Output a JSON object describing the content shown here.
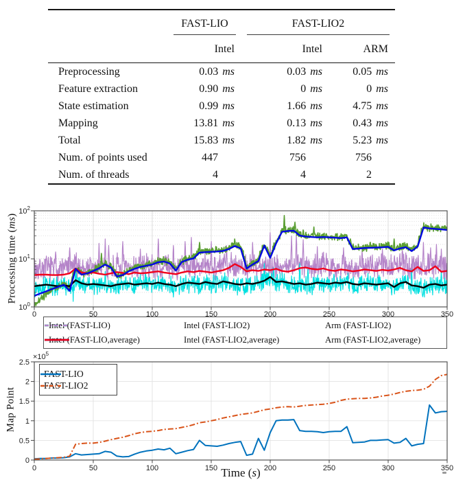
{
  "table": {
    "col_groups": [
      {
        "label": "FAST-LIO",
        "span": 1
      },
      {
        "label": "FAST-LIO2",
        "span": 2
      }
    ],
    "col_headers": [
      "Intel",
      "Intel",
      "ARM"
    ],
    "rows": [
      {
        "label": "Preprocessing",
        "cells": [
          {
            "v": "0.03",
            "u": "ms"
          },
          {
            "v": "0.03",
            "u": "ms"
          },
          {
            "v": "0.05",
            "u": "ms"
          }
        ]
      },
      {
        "label": "Feature extraction",
        "cells": [
          {
            "v": "0.90",
            "u": "ms"
          },
          {
            "v": "0",
            "u": "ms"
          },
          {
            "v": "0",
            "u": "ms"
          }
        ]
      },
      {
        "label": "State estimation",
        "cells": [
          {
            "v": "0.99",
            "u": "ms"
          },
          {
            "v": "1.66",
            "u": "ms"
          },
          {
            "v": "4.75",
            "u": "ms"
          }
        ]
      },
      {
        "label": "Mapping",
        "cells": [
          {
            "v": "13.81",
            "u": "ms"
          },
          {
            "v": "0.13",
            "u": "ms"
          },
          {
            "v": "0.43",
            "u": "ms"
          }
        ]
      },
      {
        "label": "Total",
        "cells": [
          {
            "v": "15.83",
            "u": "ms"
          },
          {
            "v": "1.82",
            "u": "ms"
          },
          {
            "v": "5.23",
            "u": "ms"
          }
        ]
      },
      {
        "label": "Num. of points used",
        "cells": [
          {
            "v": "447",
            "u": ""
          },
          {
            "v": "756",
            "u": ""
          },
          {
            "v": "756",
            "u": ""
          }
        ]
      },
      {
        "label": "Num. of threads",
        "cells": [
          {
            "v": "4",
            "u": ""
          },
          {
            "v": "4",
            "u": ""
          },
          {
            "v": "2",
            "u": ""
          }
        ]
      }
    ]
  },
  "chart_data": [
    {
      "type": "line",
      "title": "",
      "xlabel": "",
      "ylabel": "Processing time (ms)",
      "yscale": "log",
      "xlim": [
        0,
        350
      ],
      "ylim": [
        1,
        100
      ],
      "x_ticks": [
        0,
        50,
        100,
        150,
        200,
        250,
        300,
        350
      ],
      "y_ticks": [
        "10^0",
        "10^1",
        "10^2"
      ],
      "grid": true,
      "legend_position": "below",
      "x_step": 5,
      "series": [
        {
          "name": "Intel (FAST-LIO)",
          "kind": "raw",
          "color": "#5a9e32",
          "style": "dashdot",
          "noise_sigma": 0.13,
          "base": [
            1.1,
            1.4,
            1.9,
            2.3,
            2.6,
            3.0,
            2.3,
            6.5,
            4.9,
            5.3,
            5.9,
            6.7,
            8.0,
            6.9,
            4.5,
            4.8,
            5.8,
            6.5,
            7.1,
            7.6,
            8.0,
            8.9,
            9.2,
            8.4,
            6.0,
            9.0,
            10.1,
            10.7,
            14.2,
            14.5,
            14.7,
            14.9,
            15.3,
            16.8,
            19.4,
            17.3,
            6.6,
            8.0,
            9.5,
            20.0,
            11.0,
            22.0,
            38.3,
            39.9,
            40.4,
            32.0,
            30.5,
            29.9,
            29.4,
            29.9,
            29.4,
            28.9,
            28.4,
            29.4,
            16.8,
            17.1,
            17.6,
            17.9,
            18.1,
            18.3,
            18.7,
            15.8,
            17.3,
            18.4,
            15.2,
            18.9,
            47.3,
            45.2,
            44.1,
            43.1,
            42.0
          ],
          "spikes": [
            [
              212,
              80
            ],
            [
              221,
              58
            ],
            [
              228,
              40
            ],
            [
              237,
              46
            ],
            [
              247,
              30
            ],
            [
              305,
              26
            ],
            [
              332,
              52
            ],
            [
              140,
              22
            ],
            [
              170,
              26
            ],
            [
              57,
              13
            ]
          ]
        },
        {
          "name": "Intel (FAST-LIO2)",
          "kind": "raw",
          "color": "#00e0e0",
          "style": "dashdot",
          "noise_sigma": 0.3,
          "base": [
            2.6,
            2.7,
            2.8,
            2.7,
            2.6,
            2.7,
            2.6,
            3.4,
            3.0,
            2.8,
            2.9,
            2.8,
            2.7,
            2.6,
            2.8,
            2.9,
            3.0,
            2.8,
            2.9,
            3.0,
            2.9,
            3.1,
            2.9,
            2.8,
            2.6,
            2.9,
            3.1,
            3.0,
            2.9,
            3.2,
            3.0,
            2.9,
            3.3,
            3.1,
            2.9,
            2.8,
            3.0,
            2.9,
            3.1,
            3.4,
            4.0,
            3.2,
            3.3,
            3.1,
            2.9,
            3.0,
            2.8,
            2.9,
            3.1,
            3.0,
            2.9,
            3.1,
            3.0,
            3.2,
            2.9,
            2.8,
            3.0,
            2.9,
            2.8,
            2.9,
            3.0,
            2.5,
            3.0,
            3.2,
            2.7,
            2.6,
            2.4,
            2.8,
            2.9,
            2.7,
            2.8
          ],
          "spikes": [
            [
              33,
              1.3
            ],
            [
              60,
              5.5
            ],
            [
              90,
              5.0
            ],
            [
              118,
              1.6
            ],
            [
              178,
              1.8
            ],
            [
              195,
              8.0
            ],
            [
              203,
              6.5
            ],
            [
              225,
              8.0
            ],
            [
              232,
              6.0
            ],
            [
              283,
              5.0
            ],
            [
              320,
              6.0
            ],
            [
              345,
              5.5
            ]
          ]
        },
        {
          "name": "Arm (FAST-LIO2)",
          "kind": "raw",
          "color": "#b584c9",
          "style": "dashdot",
          "noise_sigma": 0.42,
          "base": [
            6.0,
            6.2,
            6.5,
            6.3,
            6.1,
            6.4,
            6.6,
            7.2,
            6.8,
            6.5,
            6.7,
            6.4,
            6.2,
            6.5,
            6.8,
            6.6,
            6.3,
            6.7,
            6.5,
            6.6,
            6.8,
            7.0,
            6.7,
            6.5,
            6.3,
            6.7,
            7.0,
            6.8,
            7.1,
            6.9,
            6.7,
            7.0,
            7.3,
            7.8,
            7.5,
            7.0,
            6.7,
            7.0,
            6.8,
            7.2,
            7.0,
            7.4,
            6.8,
            6.6,
            7.0,
            7.6,
            7.8,
            7.4,
            7.2,
            7.5,
            7.0,
            6.8,
            7.2,
            7.0,
            6.7,
            6.9,
            7.2,
            7.0,
            6.8,
            7.1,
            6.9,
            7.2,
            7.7,
            7.0,
            6.7,
            8.0,
            6.8,
            7.0,
            8.2,
            6.6,
            6.8
          ],
          "spikes": [
            [
              18,
              14
            ],
            [
              30,
              17
            ],
            [
              55,
              21
            ],
            [
              60,
              26
            ],
            [
              63,
              19
            ],
            [
              75,
              23
            ],
            [
              90,
              16
            ],
            [
              105,
              26
            ],
            [
              118,
              19
            ],
            [
              128,
              23
            ],
            [
              133,
              28
            ],
            [
              150,
              23
            ],
            [
              163,
              19
            ],
            [
              185,
              22
            ],
            [
              200,
              35
            ],
            [
              218,
              30
            ],
            [
              222,
              32
            ],
            [
              228,
              25
            ],
            [
              240,
              18
            ],
            [
              262,
              17
            ],
            [
              278,
              15
            ],
            [
              295,
              16
            ],
            [
              312,
              15
            ],
            [
              330,
              22
            ],
            [
              336,
              17
            ],
            [
              341,
              20
            ],
            [
              345,
              16
            ]
          ]
        },
        {
          "name": "Intel (FAST-LIO,average)",
          "kind": "average",
          "color": "#0008e0",
          "style": "solid",
          "values": [
            1.7,
            1.9,
            2.1,
            2.35,
            2.6,
            2.9,
            2.15,
            6.2,
            4.7,
            5.0,
            5.6,
            6.4,
            7.6,
            6.6,
            4.3,
            4.6,
            5.5,
            6.2,
            6.8,
            7.2,
            7.6,
            8.5,
            8.8,
            8.0,
            5.7,
            8.6,
            9.6,
            10.2,
            13.5,
            13.8,
            14.0,
            14.2,
            14.6,
            16.0,
            18.5,
            16.5,
            6.3,
            7.6,
            9.0,
            19.0,
            10.5,
            21.0,
            36.5,
            38.0,
            38.5,
            30.5,
            29.0,
            28.5,
            28.0,
            28.5,
            28.0,
            27.5,
            27.0,
            28.0,
            16.0,
            16.3,
            16.8,
            17.0,
            17.2,
            17.4,
            17.8,
            15.0,
            16.5,
            17.5,
            14.5,
            18.0,
            45.0,
            43.0,
            42.0,
            41.0,
            40.0
          ]
        },
        {
          "name": "Intel (FAST-LIO2,average)",
          "kind": "average",
          "color": "#000000",
          "style": "solid",
          "values": [
            2.7,
            2.8,
            2.9,
            2.8,
            2.7,
            2.8,
            2.7,
            3.6,
            3.1,
            2.9,
            3.0,
            2.9,
            2.8,
            2.7,
            2.9,
            3.0,
            3.1,
            2.9,
            3.0,
            3.1,
            3.0,
            3.2,
            3.0,
            2.9,
            2.7,
            3.0,
            3.2,
            3.1,
            3.0,
            3.3,
            3.1,
            3.0,
            3.4,
            3.2,
            3.0,
            2.9,
            3.1,
            3.0,
            3.2,
            3.5,
            4.2,
            3.3,
            3.4,
            3.2,
            3.0,
            3.1,
            2.9,
            3.0,
            3.2,
            3.1,
            3.0,
            3.2,
            3.1,
            3.3,
            3.0,
            2.9,
            3.1,
            3.0,
            2.9,
            3.0,
            3.1,
            2.6,
            3.1,
            3.3,
            2.8,
            2.7,
            2.5,
            2.9,
            3.0,
            2.8,
            2.9
          ]
        },
        {
          "name": "Arm (FAST-LIO2,average)",
          "kind": "average",
          "color": "#f0001c",
          "style": "solid",
          "values": [
            4.6,
            4.7,
            4.7,
            4.6,
            4.6,
            4.7,
            5.0,
            6.3,
            5.2,
            5.0,
            5.2,
            4.9,
            4.7,
            5.0,
            5.3,
            5.1,
            4.8,
            5.2,
            5.0,
            5.1,
            5.3,
            5.5,
            5.2,
            5.0,
            4.8,
            5.2,
            5.5,
            5.3,
            5.6,
            5.4,
            5.2,
            5.5,
            5.8,
            6.5,
            7.8,
            6.8,
            5.5,
            5.8,
            5.6,
            6.0,
            5.8,
            6.2,
            5.6,
            5.4,
            5.8,
            6.4,
            6.6,
            6.2,
            6.0,
            6.3,
            5.8,
            5.6,
            6.0,
            5.8,
            5.5,
            5.7,
            6.0,
            5.8,
            5.6,
            5.9,
            5.7,
            6.0,
            6.5,
            5.8,
            5.5,
            6.8,
            5.6,
            5.8,
            7.0,
            5.4,
            5.6
          ]
        }
      ]
    },
    {
      "type": "line",
      "title": "",
      "xlabel": "Time (s)",
      "ylabel": "Map Point",
      "y_scale_label": "×10^5",
      "yscale": "linear",
      "xlim": [
        0,
        350
      ],
      "ylim_1e5": [
        0,
        2.5
      ],
      "x_ticks": [
        0,
        50,
        100,
        150,
        200,
        250,
        300,
        350
      ],
      "y_ticks": [
        "0",
        "0.5",
        "1",
        "1.5",
        "2",
        "2.5"
      ],
      "grid": true,
      "legend_position": "upper-left",
      "x_step": 5,
      "series": [
        {
          "name": "FAST-LIO",
          "color": "#0072BD",
          "style": "solid",
          "values": [
            0.03,
            0.04,
            0.04,
            0.05,
            0.05,
            0.06,
            0.08,
            0.16,
            0.13,
            0.14,
            0.15,
            0.16,
            0.22,
            0.2,
            0.1,
            0.08,
            0.09,
            0.15,
            0.2,
            0.23,
            0.25,
            0.28,
            0.26,
            0.3,
            0.16,
            0.2,
            0.24,
            0.27,
            0.5,
            0.37,
            0.36,
            0.35,
            0.38,
            0.42,
            0.45,
            0.47,
            0.12,
            0.15,
            0.55,
            0.25,
            0.7,
            1.0,
            1.02,
            1.02,
            1.03,
            0.75,
            0.73,
            0.73,
            0.72,
            0.7,
            0.72,
            0.73,
            0.73,
            0.85,
            0.44,
            0.45,
            0.46,
            0.5,
            0.5,
            0.51,
            0.52,
            0.43,
            0.45,
            0.55,
            0.36,
            0.4,
            0.42,
            1.4,
            1.2,
            1.23,
            1.24
          ]
        },
        {
          "name": "FAST-LIO2",
          "color": "#D95319",
          "style": "dashdot",
          "values": [
            0.02,
            0.03,
            0.04,
            0.05,
            0.06,
            0.07,
            0.1,
            0.4,
            0.42,
            0.43,
            0.43,
            0.45,
            0.48,
            0.52,
            0.55,
            0.58,
            0.62,
            0.67,
            0.7,
            0.72,
            0.73,
            0.75,
            0.78,
            0.79,
            0.8,
            0.83,
            0.86,
            0.9,
            0.95,
            0.97,
            1.0,
            1.03,
            1.07,
            1.1,
            1.13,
            1.16,
            1.18,
            1.2,
            1.24,
            1.28,
            1.3,
            1.33,
            1.35,
            1.36,
            1.35,
            1.37,
            1.39,
            1.4,
            1.41,
            1.42,
            1.44,
            1.47,
            1.52,
            1.55,
            1.56,
            1.57,
            1.57,
            1.58,
            1.6,
            1.63,
            1.65,
            1.68,
            1.72,
            1.75,
            1.77,
            1.78,
            1.8,
            1.88,
            2.05,
            2.15,
            2.18
          ]
        }
      ]
    }
  ]
}
